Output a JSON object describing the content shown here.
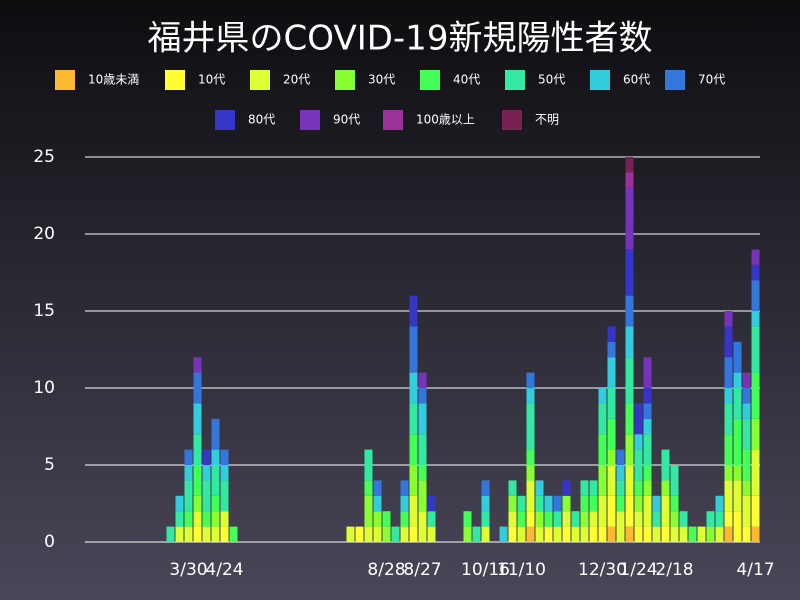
{
  "chart_data": {
    "type": "stacked_bar",
    "title": "福井県のCOVID-19新規陽性者数",
    "categories": [
      null,
      null,
      null,
      null,
      null,
      null,
      null,
      null,
      null,
      null,
      null,
      "3/30",
      null,
      null,
      null,
      "4/24",
      null,
      null,
      null,
      null,
      null,
      null,
      null,
      null,
      null,
      null,
      null,
      null,
      null,
      null,
      null,
      null,
      null,
      "8/28",
      null,
      null,
      null,
      "8/27",
      null,
      null,
      null,
      null,
      null,
      null,
      "10/16",
      null,
      null,
      null,
      "11/10",
      null,
      null,
      null,
      null,
      null,
      null,
      null,
      null,
      "12/30",
      null,
      null,
      null,
      "1/24",
      null,
      null,
      null,
      "2/18",
      null,
      null,
      null,
      null,
      null,
      null,
      null,
      null,
      "4/17"
    ],
    "ylim": [
      0,
      25
    ],
    "yticks": [
      0,
      5,
      10,
      15,
      20,
      25
    ],
    "grid": true,
    "series": [
      {
        "name": "10歳未満",
        "color": "#ffb830",
        "values": [
          0,
          0,
          0,
          0,
          0,
          0,
          0,
          0,
          0,
          0,
          0,
          0,
          0,
          0,
          0,
          0,
          0,
          0,
          0,
          0,
          0,
          0,
          0,
          0,
          0,
          0,
          0,
          0,
          0,
          0,
          0,
          0,
          0,
          0,
          0,
          0,
          0,
          0,
          0,
          0,
          0,
          0,
          0,
          0,
          0,
          0,
          0,
          0,
          0,
          1,
          0,
          0,
          0,
          0,
          0,
          0,
          0,
          0,
          1,
          0,
          1,
          0,
          0,
          0,
          0,
          0,
          0,
          0,
          0,
          0,
          0,
          1,
          0,
          0,
          1
        ]
      },
      {
        "name": "10代",
        "color": "#ffff33",
        "values": [
          0,
          0,
          0,
          0,
          0,
          0,
          0,
          0,
          0,
          0,
          0,
          0,
          1,
          0,
          0,
          1,
          0,
          0,
          0,
          0,
          0,
          0,
          0,
          0,
          0,
          0,
          0,
          0,
          0,
          0,
          1,
          0,
          0,
          0,
          0,
          0,
          1,
          0,
          0,
          0,
          0,
          0,
          0,
          0,
          0,
          0,
          0,
          1,
          0,
          1,
          0,
          1,
          0,
          1,
          0,
          0,
          1,
          1,
          2,
          0,
          2,
          1,
          1,
          0,
          1,
          0,
          0,
          0,
          0,
          0,
          0,
          1,
          2,
          1,
          2
        ]
      },
      {
        "name": "20代",
        "color": "#ddff33",
        "values": [
          0,
          0,
          0,
          0,
          0,
          0,
          0,
          0,
          0,
          0,
          1,
          1,
          1,
          1,
          1,
          1,
          0,
          0,
          0,
          0,
          0,
          0,
          0,
          0,
          0,
          0,
          0,
          0,
          0,
          1,
          0,
          1,
          1,
          0,
          0,
          1,
          2,
          2,
          1,
          0,
          0,
          0,
          0,
          0,
          1,
          0,
          0,
          1,
          1,
          2,
          1,
          0,
          1,
          1,
          1,
          1,
          1,
          2,
          2,
          2,
          2,
          1,
          2,
          1,
          2,
          1,
          1,
          0,
          1,
          0,
          1,
          2,
          2,
          2,
          3
        ]
      },
      {
        "name": "30代",
        "color": "#88ff33",
        "values": [
          0,
          0,
          0,
          0,
          0,
          0,
          0,
          0,
          0,
          0,
          0,
          0,
          1,
          0,
          1,
          0,
          0,
          0,
          0,
          0,
          0,
          0,
          0,
          0,
          0,
          0,
          0,
          0,
          0,
          0,
          0,
          2,
          1,
          1,
          0,
          0,
          2,
          2,
          0,
          0,
          0,
          0,
          1,
          0,
          0,
          0,
          0,
          1,
          0,
          1,
          1,
          0,
          0,
          1,
          0,
          1,
          0,
          2,
          1,
          0,
          2,
          1,
          1,
          0,
          1,
          1,
          0,
          0,
          0,
          1,
          0,
          1,
          1,
          1,
          2
        ]
      },
      {
        "name": "40代",
        "color": "#44ff55",
        "values": [
          0,
          0,
          0,
          0,
          0,
          0,
          0,
          0,
          0,
          0,
          0,
          1,
          2,
          1,
          1,
          0,
          1,
          0,
          0,
          0,
          0,
          0,
          0,
          0,
          0,
          0,
          0,
          0,
          0,
          0,
          0,
          1,
          0,
          1,
          0,
          1,
          2,
          1,
          0,
          0,
          0,
          0,
          1,
          0,
          0,
          0,
          0,
          0,
          1,
          1,
          0,
          1,
          0,
          0,
          0,
          1,
          1,
          2,
          2,
          1,
          2,
          1,
          1,
          0,
          0,
          1,
          0,
          1,
          0,
          0,
          0,
          2,
          3,
          2,
          3
        ]
      },
      {
        "name": "50代",
        "color": "#33e8a0",
        "values": [
          0,
          0,
          0,
          0,
          0,
          0,
          0,
          0,
          0,
          1,
          1,
          2,
          2,
          2,
          2,
          2,
          0,
          0,
          0,
          0,
          0,
          0,
          0,
          0,
          0,
          0,
          0,
          0,
          0,
          0,
          0,
          2,
          0,
          0,
          1,
          0,
          2,
          2,
          1,
          0,
          0,
          0,
          0,
          1,
          1,
          0,
          0,
          1,
          1,
          3,
          1,
          0,
          1,
          0,
          1,
          1,
          1,
          2,
          2,
          1,
          3,
          2,
          2,
          1,
          2,
          2,
          1,
          0,
          0,
          1,
          1,
          2,
          2,
          2,
          3
        ]
      },
      {
        "name": "60代",
        "color": "#33ccdd",
        "values": [
          0,
          0,
          0,
          0,
          0,
          0,
          0,
          0,
          0,
          0,
          1,
          1,
          2,
          1,
          1,
          1,
          0,
          0,
          0,
          0,
          0,
          0,
          0,
          0,
          0,
          0,
          0,
          0,
          0,
          0,
          0,
          0,
          1,
          0,
          0,
          1,
          2,
          2,
          0,
          0,
          0,
          0,
          0,
          0,
          1,
          0,
          1,
          0,
          0,
          1,
          1,
          1,
          0,
          0,
          0,
          0,
          0,
          1,
          2,
          1,
          2,
          1,
          1,
          1,
          0,
          0,
          0,
          0,
          0,
          0,
          1,
          1,
          1,
          1,
          1
        ]
      },
      {
        "name": "70代",
        "color": "#3377dd",
        "values": [
          0,
          0,
          0,
          0,
          0,
          0,
          0,
          0,
          0,
          0,
          0,
          1,
          2,
          0,
          2,
          1,
          0,
          0,
          0,
          0,
          0,
          0,
          0,
          0,
          0,
          0,
          0,
          0,
          0,
          0,
          0,
          0,
          1,
          0,
          0,
          1,
          3,
          1,
          0,
          0,
          0,
          0,
          0,
          0,
          1,
          0,
          0,
          0,
          0,
          1,
          0,
          0,
          1,
          0,
          0,
          0,
          0,
          0,
          1,
          1,
          2,
          0,
          1,
          0,
          0,
          0,
          0,
          0,
          0,
          0,
          0,
          2,
          2,
          1,
          2
        ]
      },
      {
        "name": "80代",
        "color": "#3535c8",
        "values": [
          0,
          0,
          0,
          0,
          0,
          0,
          0,
          0,
          0,
          0,
          0,
          0,
          0,
          1,
          0,
          0,
          0,
          0,
          0,
          0,
          0,
          0,
          0,
          0,
          0,
          0,
          0,
          0,
          0,
          0,
          0,
          0,
          0,
          0,
          0,
          0,
          2,
          0,
          1,
          0,
          0,
          0,
          0,
          0,
          0,
          0,
          0,
          0,
          0,
          0,
          0,
          0,
          0,
          1,
          0,
          0,
          0,
          0,
          1,
          0,
          3,
          2,
          1,
          0,
          0,
          0,
          0,
          0,
          0,
          0,
          0,
          2,
          0,
          0,
          1
        ]
      },
      {
        "name": "90代",
        "color": "#7733bb",
        "values": [
          0,
          0,
          0,
          0,
          0,
          0,
          0,
          0,
          0,
          0,
          0,
          0,
          1,
          0,
          0,
          0,
          0,
          0,
          0,
          0,
          0,
          0,
          0,
          0,
          0,
          0,
          0,
          0,
          0,
          0,
          0,
          0,
          0,
          0,
          0,
          0,
          0,
          1,
          0,
          0,
          0,
          0,
          0,
          0,
          0,
          0,
          0,
          0,
          0,
          0,
          0,
          0,
          0,
          0,
          0,
          0,
          0,
          0,
          0,
          0,
          4,
          0,
          2,
          0,
          0,
          0,
          0,
          0,
          0,
          0,
          0,
          1,
          0,
          1,
          1
        ]
      },
      {
        "name": "100歳以上",
        "color": "#993399",
        "values": [
          0,
          0,
          0,
          0,
          0,
          0,
          0,
          0,
          0,
          0,
          0,
          0,
          0,
          0,
          0,
          0,
          0,
          0,
          0,
          0,
          0,
          0,
          0,
          0,
          0,
          0,
          0,
          0,
          0,
          0,
          0,
          0,
          0,
          0,
          0,
          0,
          0,
          0,
          0,
          0,
          0,
          0,
          0,
          0,
          0,
          0,
          0,
          0,
          0,
          0,
          0,
          0,
          0,
          0,
          0,
          0,
          0,
          0,
          0,
          0,
          1,
          0,
          0,
          0,
          0,
          0,
          0,
          0,
          0,
          0,
          0,
          0,
          0,
          0,
          0
        ]
      },
      {
        "name": "不明",
        "color": "#772255",
        "values": [
          0,
          0,
          0,
          0,
          0,
          0,
          0,
          0,
          0,
          0,
          0,
          0,
          0,
          0,
          0,
          0,
          0,
          0,
          0,
          0,
          0,
          0,
          0,
          0,
          0,
          0,
          0,
          0,
          0,
          0,
          0,
          0,
          0,
          0,
          0,
          0,
          0,
          0,
          0,
          0,
          0,
          0,
          0,
          0,
          0,
          0,
          0,
          0,
          0,
          0,
          0,
          0,
          0,
          0,
          0,
          0,
          0,
          0,
          0,
          0,
          1,
          0,
          0,
          0,
          0,
          0,
          0,
          0,
          0,
          0,
          0,
          0,
          0,
          0,
          0
        ]
      }
    ]
  }
}
